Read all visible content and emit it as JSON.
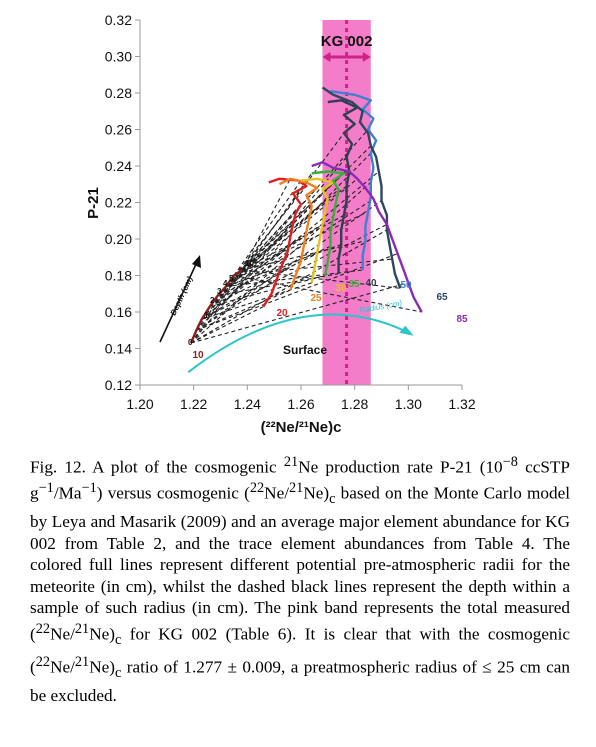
{
  "chart_data": {
    "type": "line",
    "title": "",
    "xlabel": "(²²Ne/²¹Ne)c",
    "ylabel": "P-21",
    "xlim": [
      1.2,
      1.32
    ],
    "ylim": [
      0.12,
      0.32
    ],
    "x_ticks": [
      "1.20",
      "1.22",
      "1.24",
      "1.26",
      "1.28",
      "1.30",
      "1.32"
    ],
    "y_ticks": [
      "0.12",
      "0.14",
      "0.16",
      "0.18",
      "0.20",
      "0.22",
      "0.24",
      "0.26",
      "0.28",
      "0.30",
      "0.32"
    ],
    "grid": false,
    "band": {
      "label": "KG 002",
      "x_center": 1.277,
      "x_min": 1.268,
      "x_max": 1.286,
      "color": "#f36fc4"
    },
    "series": [
      {
        "name": "10",
        "color": "#8a1f1f",
        "points": [
          [
            1.219,
            0.143
          ],
          [
            1.221,
            0.15
          ],
          [
            1.223,
            0.156
          ],
          [
            1.226,
            0.163
          ],
          [
            1.229,
            0.169
          ],
          [
            1.232,
            0.174
          ],
          [
            1.235,
            0.18
          ],
          [
            1.238,
            0.183
          ]
        ]
      },
      {
        "name": "20",
        "color": "#e02020",
        "points": [
          [
            1.246,
            0.163
          ],
          [
            1.249,
            0.17
          ],
          [
            1.251,
            0.178
          ],
          [
            1.253,
            0.186
          ],
          [
            1.255,
            0.193
          ],
          [
            1.256,
            0.201
          ],
          [
            1.257,
            0.208
          ],
          [
            1.258,
            0.214
          ],
          [
            1.26,
            0.219
          ],
          [
            1.257,
            0.225
          ],
          [
            1.262,
            0.229
          ],
          [
            1.259,
            0.232
          ],
          [
            1.252,
            0.233
          ],
          [
            1.248,
            0.231
          ]
        ]
      },
      {
        "name": "25",
        "color": "#f08020",
        "points": [
          [
            1.256,
            0.172
          ],
          [
            1.258,
            0.18
          ],
          [
            1.26,
            0.188
          ],
          [
            1.261,
            0.196
          ],
          [
            1.262,
            0.204
          ],
          [
            1.263,
            0.211
          ],
          [
            1.264,
            0.218
          ],
          [
            1.262,
            0.224
          ],
          [
            1.266,
            0.228
          ],
          [
            1.262,
            0.231
          ],
          [
            1.256,
            0.233
          ],
          [
            1.252,
            0.23
          ]
        ]
      },
      {
        "name": "30",
        "color": "#e8c020",
        "points": [
          [
            1.264,
            0.176
          ],
          [
            1.265,
            0.184
          ],
          [
            1.266,
            0.192
          ],
          [
            1.267,
            0.2
          ],
          [
            1.268,
            0.208
          ],
          [
            1.269,
            0.215
          ],
          [
            1.27,
            0.222
          ],
          [
            1.268,
            0.227
          ],
          [
            1.272,
            0.231
          ],
          [
            1.266,
            0.233
          ],
          [
            1.26,
            0.232
          ]
        ]
      },
      {
        "name": "35",
        "color": "#38b038",
        "points": [
          [
            1.269,
            0.18
          ],
          [
            1.27,
            0.188
          ],
          [
            1.271,
            0.196
          ],
          [
            1.271,
            0.204
          ],
          [
            1.272,
            0.212
          ],
          [
            1.273,
            0.22
          ],
          [
            1.274,
            0.227
          ],
          [
            1.272,
            0.232
          ],
          [
            1.276,
            0.236
          ],
          [
            1.27,
            0.237
          ],
          [
            1.264,
            0.236
          ]
        ]
      },
      {
        "name": "40",
        "color": "#304050",
        "points": [
          [
            1.274,
            0.181
          ],
          [
            1.274,
            0.189
          ],
          [
            1.275,
            0.197
          ],
          [
            1.275,
            0.205
          ],
          [
            1.276,
            0.213
          ],
          [
            1.277,
            0.221
          ],
          [
            1.277,
            0.229
          ],
          [
            1.278,
            0.237
          ],
          [
            1.277,
            0.245
          ],
          [
            1.279,
            0.252
          ],
          [
            1.276,
            0.258
          ],
          [
            1.28,
            0.263
          ],
          [
            1.276,
            0.268
          ],
          [
            1.281,
            0.272
          ],
          [
            1.275,
            0.276
          ],
          [
            1.27,
            0.275
          ]
        ]
      },
      {
        "name": "50",
        "color": "#3b82d0",
        "points": [
          [
            1.283,
            0.183
          ],
          [
            1.283,
            0.191
          ],
          [
            1.284,
            0.199
          ],
          [
            1.284,
            0.207
          ],
          [
            1.285,
            0.215
          ],
          [
            1.286,
            0.223
          ],
          [
            1.286,
            0.231
          ],
          [
            1.287,
            0.239
          ],
          [
            1.286,
            0.247
          ],
          [
            1.288,
            0.254
          ],
          [
            1.285,
            0.26
          ],
          [
            1.287,
            0.266
          ],
          [
            1.283,
            0.271
          ],
          [
            1.286,
            0.276
          ],
          [
            1.28,
            0.279
          ],
          [
            1.271,
            0.281
          ]
        ]
      },
      {
        "name": "65",
        "color": "#2c4860",
        "points": [
          [
            1.297,
            0.173
          ],
          [
            1.295,
            0.181
          ],
          [
            1.294,
            0.189
          ],
          [
            1.293,
            0.197
          ],
          [
            1.292,
            0.205
          ],
          [
            1.292,
            0.213
          ],
          [
            1.29,
            0.221
          ],
          [
            1.29,
            0.229
          ],
          [
            1.289,
            0.237
          ],
          [
            1.288,
            0.245
          ],
          [
            1.286,
            0.251
          ],
          [
            1.285,
            0.258
          ],
          [
            1.282,
            0.264
          ],
          [
            1.283,
            0.27
          ],
          [
            1.279,
            0.275
          ],
          [
            1.272,
            0.279
          ],
          [
            1.268,
            0.283
          ]
        ]
      },
      {
        "name": "85",
        "color": "#8a2ab8",
        "points": [
          [
            1.305,
            0.16
          ],
          [
            1.302,
            0.168
          ],
          [
            1.3,
            0.176
          ],
          [
            1.298,
            0.184
          ],
          [
            1.296,
            0.192
          ],
          [
            1.294,
            0.2
          ],
          [
            1.292,
            0.208
          ],
          [
            1.289,
            0.215
          ],
          [
            1.287,
            0.222
          ],
          [
            1.284,
            0.228
          ],
          [
            1.281,
            0.233
          ],
          [
            1.278,
            0.237
          ],
          [
            1.272,
            0.239
          ],
          [
            1.268,
            0.242
          ],
          [
            1.264,
            0.24
          ]
        ]
      }
    ],
    "annotations": {
      "depth_arrow_label": "Depth (cm)",
      "depth_labels": [
        "0",
        "1",
        "2",
        "3",
        "4",
        "5",
        "10"
      ],
      "radius_arrow_label": "Radius (cm)",
      "surface_label": "Surface",
      "radius_labels": [
        {
          "text": "10",
          "color": "#8a1f1f"
        },
        {
          "text": "20",
          "color": "#e02020"
        },
        {
          "text": "25",
          "color": "#f08020"
        },
        {
          "text": "30",
          "color": "#e8c020"
        },
        {
          "text": "35",
          "color": "#38b038"
        },
        {
          "text": "40",
          "color": "#304050"
        },
        {
          "text": "50",
          "color": "#3b82d0"
        },
        {
          "text": "65",
          "color": "#2c4860"
        },
        {
          "text": "85",
          "color": "#8a2ab8"
        }
      ]
    }
  },
  "caption": {
    "fig_label": "Fig. 12.",
    "s1": " A plot of the cosmogenic ",
    "iso21": "21",
    "s2": "Ne production rate P-21 (10",
    "exp8": "−8",
    "s3": " ccSTP g",
    "exp1a": "−1",
    "s4": "/Ma",
    "exp1b": "−1",
    "s5": ") versus cosmogenic (",
    "iso22a": "22",
    "s6": "Ne/",
    "iso21b": "21",
    "s7": "Ne)",
    "sub_c1": "c",
    "s8": " based on the Monte Carlo model by Leya and Masarik (2009) and an average major element abundance for KG 002 from Table 2, and the trace element abundances from Table 4. The colored full lines represent different potential pre-atmospheric radii for the meteorite (in cm), whilst the dashed black lines represent the depth within a sample of such radius (in cm). The pink band represents the total measured (",
    "iso22b": "22",
    "s9": "Ne/",
    "iso21c": "21",
    "s10": "Ne)",
    "sub_c2": "c",
    "s11": " for KG 002 (Table 6). It is clear that with the cosmogenic (",
    "iso22c": "22",
    "s12": "Ne/",
    "iso21d": "21",
    "s13": "Ne)",
    "sub_c3": "c",
    "s14": " ratio of 1.277 ± 0.009, a preatmospheric radius of ≤ 25 cm can be excluded."
  }
}
